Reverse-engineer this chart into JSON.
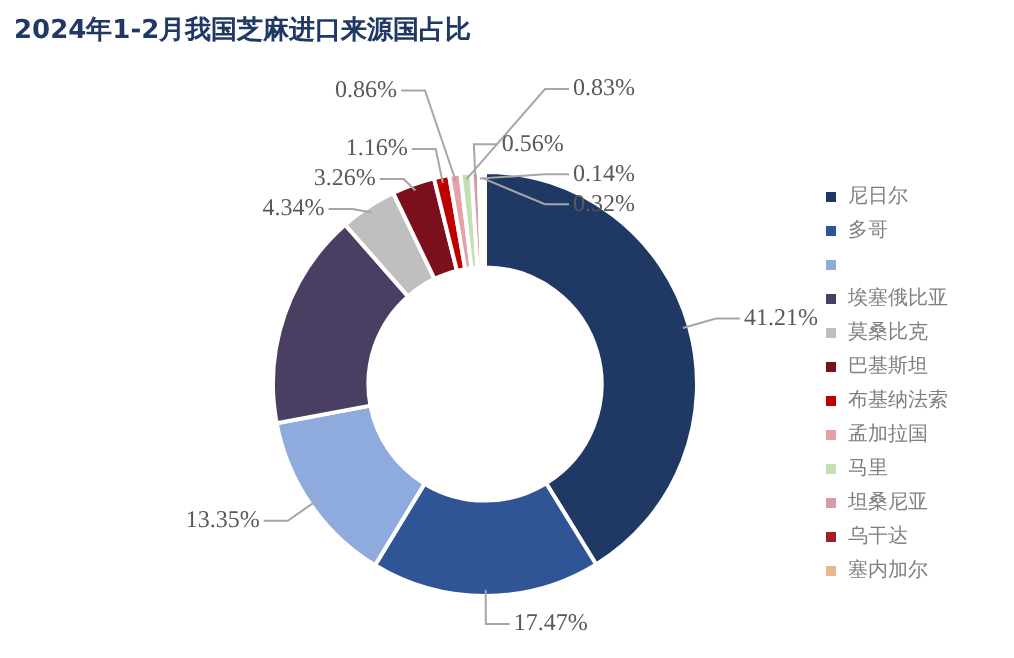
{
  "chart_data": {
    "type": "donut",
    "title": "2024年1-2月我国芝麻进口来源国占比",
    "categories": [
      "尼日尔",
      "多哥",
      null,
      "埃塞俄比亚",
      "莫桑比克",
      "巴基斯坦",
      "布基纳法索",
      "孟加拉国",
      "马里",
      "坦桑尼亚",
      "乌干达",
      "塞内加尔"
    ],
    "values": [
      41.21,
      17.47,
      13.35,
      16.5,
      4.34,
      3.26,
      1.16,
      0.86,
      0.83,
      0.56,
      0.14,
      0.32
    ],
    "value_labels": [
      "41.21%",
      "17.47%",
      "13.35%",
      null,
      "4.34%",
      "3.26%",
      "1.16%",
      "0.86%",
      "0.83%",
      "0.56%",
      "0.14%",
      "0.32%"
    ],
    "colors": [
      "#1f3864",
      "#2f5597",
      "#8faadc",
      "#4a3f63",
      "#bfbfbf",
      "#7b0f1c",
      "#c00000",
      "#e6a1a8",
      "#c5dfb4",
      "#d99aa5",
      "#a0202a",
      "#e6b98a"
    ],
    "legend": "right"
  }
}
